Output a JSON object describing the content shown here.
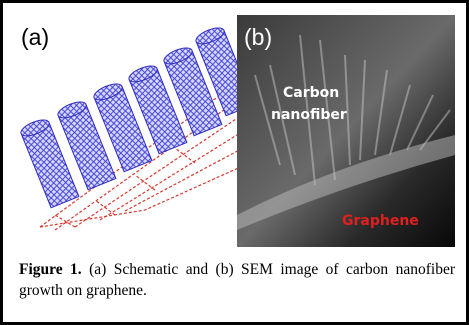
{
  "figure": {
    "panel_a": {
      "label": "(a)"
    },
    "panel_b": {
      "label": "(b)",
      "labels": [
        "Carbon",
        "nanofiber",
        "Graphene"
      ]
    }
  },
  "caption": {
    "label": "Figure 1.",
    "text": " (a) Schematic and (b) SEM image of carbon nanofiber growth on graphene."
  }
}
